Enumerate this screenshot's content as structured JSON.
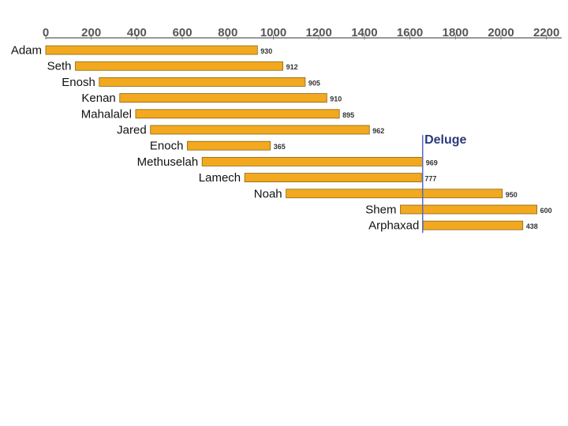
{
  "chart_data": {
    "type": "bar",
    "orientation": "horizontal-timeline",
    "title": "",
    "xlabel": "",
    "ylabel": "",
    "x_axis_position": "top",
    "xlim": [
      0,
      2250
    ],
    "x_ticks": [
      0,
      200,
      400,
      600,
      800,
      1000,
      1200,
      1400,
      1600,
      1800,
      2000,
      2200
    ],
    "grid": false,
    "legend": "none",
    "bar_color": "#f2a91f",
    "bar_edge_color": "#8a6410",
    "line_color": "#5b6abf",
    "annotation_color": "#2a3a7a",
    "bars": [
      {
        "name": "Adam",
        "start": 0,
        "end": 930,
        "label": "930"
      },
      {
        "name": "Seth",
        "start": 130,
        "end": 1042,
        "label": "912"
      },
      {
        "name": "Enosh",
        "start": 235,
        "end": 1140,
        "label": "905"
      },
      {
        "name": "Kenan",
        "start": 325,
        "end": 1235,
        "label": "910"
      },
      {
        "name": "Mahalalel",
        "start": 395,
        "end": 1290,
        "label": "895"
      },
      {
        "name": "Jared",
        "start": 460,
        "end": 1422,
        "label": "962"
      },
      {
        "name": "Enoch",
        "start": 622,
        "end": 987,
        "label": "365"
      },
      {
        "name": "Methuselah",
        "start": 687,
        "end": 1656,
        "label": "969"
      },
      {
        "name": "Lamech",
        "start": 874,
        "end": 1651,
        "label": "777"
      },
      {
        "name": "Noah",
        "start": 1056,
        "end": 2006,
        "label": "950"
      },
      {
        "name": "Shem",
        "start": 1558,
        "end": 2158,
        "label": "600"
      },
      {
        "name": "Arphaxad",
        "start": 1658,
        "end": 2096,
        "label": "438"
      }
    ],
    "annotations": [
      {
        "text": "Deluge",
        "x": 1656
      }
    ]
  }
}
